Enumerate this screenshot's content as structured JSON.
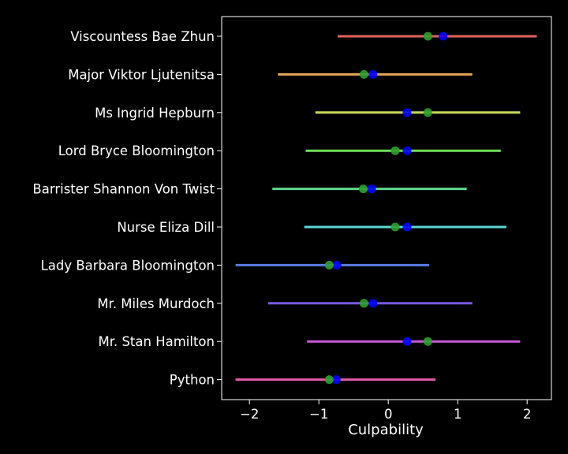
{
  "chart_data": {
    "type": "scatter",
    "title": "",
    "xlabel": "Culpability",
    "ylabel": "",
    "xlim": [
      -2.4,
      2.35
    ],
    "xticks": [
      -2,
      -1,
      0,
      1,
      2
    ],
    "xtick_labels": [
      "−2",
      "−1",
      "0",
      "1",
      "2"
    ],
    "grid": false,
    "background": "#000000",
    "frame_color": "#ffffff",
    "marker_colors": {
      "blue": "#0000ff",
      "green": "#2ca02c"
    },
    "categories": [
      "Viscountess Bae Zhun",
      "Major Viktor Ljutenitsa",
      "Ms Ingrid Hepburn",
      "Lord Bryce Bloomington",
      "Barrister Shannon Von Twist",
      "Nurse Eliza Dill",
      "Lady Barbara Bloomington",
      "Mr. Miles Murdoch",
      "Mr. Stan Hamilton",
      "Python"
    ],
    "intervals": [
      {
        "low": -0.73,
        "high": 2.14,
        "blue": 0.79,
        "green": 0.57,
        "color": "#e0605e"
      },
      {
        "low": -1.59,
        "high": 1.21,
        "blue": -0.22,
        "green": -0.35,
        "color": "#e8a55a"
      },
      {
        "low": -1.05,
        "high": 1.9,
        "blue": 0.27,
        "green": 0.57,
        "color": "#c8d85a"
      },
      {
        "low": -1.19,
        "high": 1.62,
        "blue": 0.27,
        "green": 0.1,
        "color": "#72dd5a"
      },
      {
        "low": -1.67,
        "high": 1.13,
        "blue": -0.24,
        "green": -0.36,
        "color": "#5ed98a"
      },
      {
        "low": -1.21,
        "high": 1.7,
        "blue": 0.27,
        "green": 0.1,
        "color": "#5cd8d8"
      },
      {
        "low": -2.2,
        "high": 0.59,
        "blue": -0.74,
        "green": -0.85,
        "color": "#5a7be0"
      },
      {
        "low": -1.73,
        "high": 1.21,
        "blue": -0.22,
        "green": -0.35,
        "color": "#7a5ae0"
      },
      {
        "low": -1.17,
        "high": 1.9,
        "blue": 0.27,
        "green": 0.57,
        "color": "#c85ad8"
      },
      {
        "low": -2.2,
        "high": 0.68,
        "blue": -0.75,
        "green": -0.85,
        "color": "#e05aa5"
      }
    ]
  }
}
